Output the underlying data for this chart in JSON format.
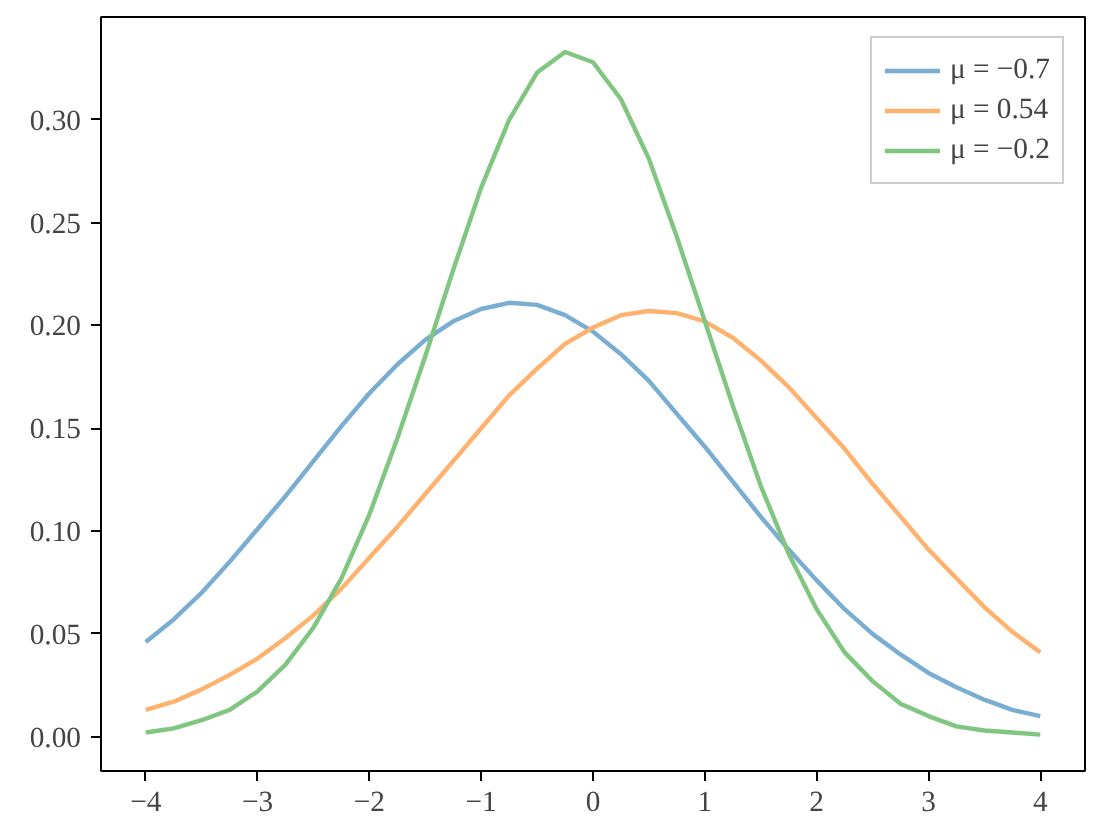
{
  "chart_data": {
    "type": "line",
    "x": [
      -4,
      -3.75,
      -3.5,
      -3.25,
      -3,
      -2.75,
      -2.5,
      -2.25,
      -2,
      -1.75,
      -1.5,
      -1.25,
      -1,
      -0.75,
      -0.5,
      -0.25,
      0,
      0.25,
      0.5,
      0.75,
      1,
      1.25,
      1.5,
      1.75,
      2,
      2.25,
      2.5,
      2.75,
      3,
      3.25,
      3.5,
      3.75,
      4
    ],
    "series": [
      {
        "name": "μ = −0.7",
        "color": "#79add2",
        "values": [
          0.046,
          0.057,
          0.07,
          0.085,
          0.101,
          0.117,
          0.134,
          0.151,
          0.167,
          0.181,
          0.193,
          0.202,
          0.208,
          0.211,
          0.21,
          0.205,
          0.197,
          0.186,
          0.173,
          0.157,
          0.141,
          0.124,
          0.107,
          0.091,
          0.076,
          0.062,
          0.05,
          0.04,
          0.031,
          0.024,
          0.018,
          0.013,
          0.01
        ]
      },
      {
        "name": "μ = 0.54",
        "color": "#ffb26e",
        "values": [
          0.013,
          0.017,
          0.023,
          0.03,
          0.038,
          0.048,
          0.059,
          0.072,
          0.087,
          0.102,
          0.118,
          0.134,
          0.15,
          0.166,
          0.179,
          0.191,
          0.199,
          0.205,
          0.207,
          0.206,
          0.202,
          0.194,
          0.183,
          0.17,
          0.155,
          0.14,
          0.123,
          0.107,
          0.091,
          0.077,
          0.063,
          0.051,
          0.041
        ]
      },
      {
        "name": "μ = −0.2",
        "color": "#80c680",
        "values": [
          0.002,
          0.004,
          0.008,
          0.013,
          0.022,
          0.035,
          0.053,
          0.077,
          0.108,
          0.145,
          0.185,
          0.227,
          0.267,
          0.3,
          0.323,
          0.333,
          0.328,
          0.31,
          0.281,
          0.243,
          0.202,
          0.161,
          0.122,
          0.089,
          0.062,
          0.041,
          0.027,
          0.016,
          0.01,
          0.005,
          0.003,
          0.002,
          0.001
        ]
      }
    ],
    "xlim": [
      -4.4,
      4.4
    ],
    "ylim": [
      -0.0167,
      0.35
    ],
    "xticks": [
      {
        "value": -4,
        "label": "−4"
      },
      {
        "value": -3,
        "label": "−3"
      },
      {
        "value": -2,
        "label": "−2"
      },
      {
        "value": -1,
        "label": "−1"
      },
      0,
      1,
      2,
      3,
      4
    ],
    "yticks": [
      {
        "value": 0,
        "label": "0.00"
      },
      {
        "value": 0.05,
        "label": "0.05"
      },
      {
        "value": 0.1,
        "label": "0.10"
      },
      {
        "value": 0.15,
        "label": "0.15"
      },
      {
        "value": 0.2,
        "label": "0.20"
      },
      {
        "value": 0.25,
        "label": "0.25"
      },
      {
        "value": 0.3,
        "label": "0.30"
      }
    ],
    "legend": "top right",
    "grid": false,
    "line_style": "solid"
  }
}
